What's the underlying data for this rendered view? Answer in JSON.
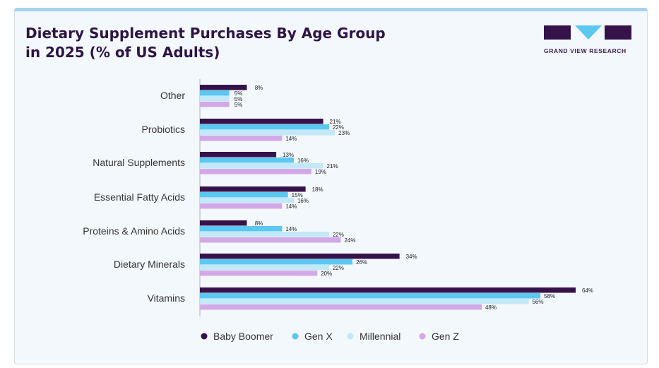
{
  "chart_data": {
    "type": "bar",
    "orientation": "horizontal",
    "title": "Dietary Supplement Purchases By Age Group in 2025 (% of US Adults)",
    "title_lines": [
      "Dietary Supplement Purchases By Age Group",
      "in 2025 (% of US Adults)"
    ],
    "categories": [
      "Other",
      "Probiotics",
      "Natural Supplements",
      "Essential Fatty Acids",
      "Proteins & Amino Acids",
      "Dietary Minerals",
      "Vitamins"
    ],
    "series": [
      {
        "name": "Baby Boomer",
        "color": "#35124a",
        "values": [
          8,
          21,
          13,
          18,
          8,
          34,
          64
        ]
      },
      {
        "name": "Gen X",
        "color": "#5bc8f2",
        "values": [
          5,
          22,
          16,
          15,
          14,
          26,
          58
        ]
      },
      {
        "name": "Millennial",
        "color": "#c3e8f8",
        "values": [
          5,
          23,
          21,
          16,
          22,
          22,
          56
        ]
      },
      {
        "name": "Gen Z",
        "color": "#d3a8e8",
        "values": [
          5,
          14,
          19,
          14,
          24,
          20,
          48
        ]
      }
    ],
    "value_suffix": "%",
    "xlim": [
      0,
      64
    ],
    "legend_position": "bottom",
    "grid": false
  },
  "brand": {
    "name": "GRAND VIEW RESEARCH"
  }
}
